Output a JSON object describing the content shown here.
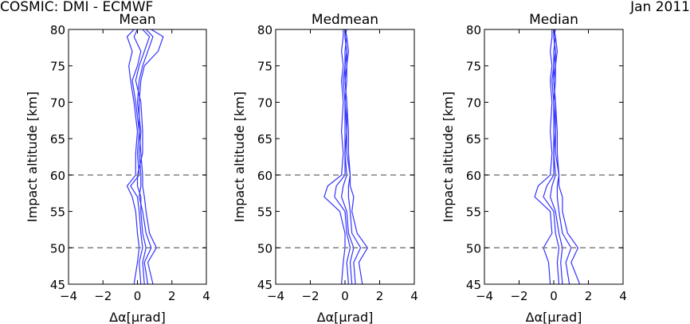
{
  "figure": {
    "title_left": "COSMIC: DMI - ECMWF",
    "title_right": "Jan 2011"
  },
  "colors": {
    "line": "#3333ff",
    "reference": "#808080",
    "axes": "#000000",
    "background": "#ffffff"
  },
  "chart_data": [
    {
      "type": "line",
      "title": "Mean",
      "xlabel": "Δα[μrad]",
      "ylabel": "Impact altitude [km]",
      "xlim": [
        -4,
        4
      ],
      "ylim": [
        45,
        80
      ],
      "xticks": [
        -4,
        -2,
        0,
        2,
        4
      ],
      "xtick_labels": [
        "−4",
        "−2",
        "0",
        "2",
        "4"
      ],
      "yticks": [
        45,
        50,
        55,
        60,
        65,
        70,
        75,
        80
      ],
      "ytick_labels": [
        "45",
        "50",
        "55",
        "60",
        "65",
        "70",
        "75",
        "80"
      ],
      "reference_lines": [
        60,
        50
      ],
      "series": [
        {
          "y": [
            45,
            48,
            50,
            52,
            55,
            57,
            58.5,
            60,
            63,
            66,
            70,
            73,
            75,
            77,
            79,
            80
          ],
          "x": [
            0.2,
            0.1,
            0.3,
            0.2,
            0.1,
            0.0,
            -0.4,
            0.1,
            0.0,
            0.1,
            -0.1,
            -0.3,
            0.0,
            0.2,
            -0.2,
            0.0
          ]
        },
        {
          "y": [
            45,
            48,
            50,
            52,
            55,
            57,
            58.5,
            60,
            63,
            66,
            70,
            73,
            75,
            77,
            79,
            80
          ],
          "x": [
            0.6,
            0.4,
            0.8,
            0.5,
            0.3,
            0.1,
            0.2,
            0.2,
            0.1,
            0.2,
            0.0,
            0.1,
            0.3,
            0.6,
            0.9,
            0.5
          ]
        },
        {
          "y": [
            45,
            48,
            50,
            52,
            55,
            57,
            58.5,
            60,
            63,
            66,
            70,
            73,
            75,
            77,
            79,
            80
          ],
          "x": [
            0.9,
            0.6,
            1.1,
            0.7,
            0.5,
            0.4,
            0.3,
            0.3,
            0.2,
            0.1,
            0.1,
            0.2,
            0.4,
            1.2,
            1.5,
            0.8
          ]
        },
        {
          "y": [
            45,
            48,
            50,
            52,
            55,
            57,
            58.5,
            60,
            63,
            66,
            70,
            73,
            75,
            77,
            79,
            80
          ],
          "x": [
            -0.2,
            0.0,
            0.1,
            0.0,
            -0.1,
            -0.3,
            -0.6,
            -0.1,
            -0.1,
            0.0,
            -0.2,
            -0.4,
            -0.5,
            -0.3,
            -0.6,
            -0.2
          ]
        },
        {
          "y": [
            45,
            48,
            50,
            52,
            55,
            57,
            58.5,
            60,
            63,
            66,
            70,
            73,
            75,
            77,
            79,
            80
          ],
          "x": [
            0.4,
            0.3,
            0.5,
            0.3,
            0.2,
            0.2,
            0.0,
            0.0,
            0.3,
            0.3,
            0.2,
            -0.1,
            0.1,
            0.4,
            0.7,
            0.3
          ]
        }
      ]
    },
    {
      "type": "line",
      "title": "Medmean",
      "xlabel": "Δα[μrad]",
      "ylabel": "Impact altitude [km]",
      "xlim": [
        -4,
        4
      ],
      "ylim": [
        45,
        80
      ],
      "xticks": [
        -4,
        -2,
        0,
        2,
        4
      ],
      "xtick_labels": [
        "−4",
        "−2",
        "0",
        "2",
        "4"
      ],
      "yticks": [
        45,
        50,
        55,
        60,
        65,
        70,
        75,
        80
      ],
      "ytick_labels": [
        "45",
        "50",
        "55",
        "60",
        "65",
        "70",
        "75",
        "80"
      ],
      "reference_lines": [
        60,
        50
      ],
      "series": [
        {
          "y": [
            45,
            48,
            50,
            52,
            55,
            57,
            58.5,
            60,
            63,
            66,
            70,
            73,
            75,
            77,
            79,
            80
          ],
          "x": [
            0.2,
            0.1,
            0.3,
            0.1,
            0.0,
            -0.6,
            -0.5,
            0.0,
            0.0,
            0.0,
            0.0,
            -0.1,
            0.0,
            0.1,
            0.0,
            0.0
          ]
        },
        {
          "y": [
            45,
            48,
            50,
            52,
            55,
            57,
            58.5,
            60,
            63,
            66,
            70,
            73,
            75,
            77,
            79,
            80
          ],
          "x": [
            0.6,
            0.5,
            0.9,
            0.4,
            0.3,
            0.2,
            0.2,
            0.3,
            0.1,
            0.1,
            0.0,
            0.1,
            0.1,
            0.1,
            0.0,
            0.1
          ]
        },
        {
          "y": [
            45,
            48,
            50,
            52,
            55,
            57,
            58.5,
            60,
            63,
            66,
            70,
            73,
            75,
            77,
            79,
            80
          ],
          "x": [
            1.0,
            0.8,
            1.3,
            0.7,
            0.4,
            0.5,
            0.3,
            0.3,
            0.2,
            0.2,
            0.1,
            0.0,
            0.1,
            0.2,
            0.1,
            0.0
          ]
        },
        {
          "y": [
            45,
            48,
            50,
            52,
            55,
            57,
            58.5,
            60,
            63,
            66,
            70,
            73,
            75,
            77,
            79,
            80
          ],
          "x": [
            -0.2,
            -0.1,
            0.0,
            0.0,
            -0.3,
            -1.2,
            -1.0,
            -0.2,
            -0.1,
            -0.2,
            -0.1,
            -0.2,
            -0.1,
            -0.2,
            -0.1,
            -0.1
          ]
        },
        {
          "y": [
            45,
            48,
            50,
            52,
            55,
            57,
            58.5,
            60,
            63,
            66,
            70,
            73,
            75,
            77,
            79,
            80
          ],
          "x": [
            0.4,
            0.3,
            0.5,
            0.2,
            0.1,
            -0.2,
            -0.1,
            0.1,
            0.0,
            0.1,
            0.1,
            0.0,
            0.0,
            0.0,
            0.1,
            0.0
          ]
        }
      ]
    },
    {
      "type": "line",
      "title": "Median",
      "xlabel": "Δα[μrad]",
      "ylabel": "Impact altitude [km]",
      "xlim": [
        -4,
        4
      ],
      "ylim": [
        45,
        80
      ],
      "xticks": [
        -4,
        -2,
        0,
        2,
        4
      ],
      "xtick_labels": [
        "−4",
        "−2",
        "0",
        "2",
        "4"
      ],
      "yticks": [
        45,
        50,
        55,
        60,
        65,
        70,
        75,
        80
      ],
      "ytick_labels": [
        "45",
        "50",
        "55",
        "60",
        "65",
        "70",
        "75",
        "80"
      ],
      "reference_lines": [
        60,
        50
      ],
      "series": [
        {
          "y": [
            45,
            48,
            50,
            52,
            55,
            57,
            58.5,
            60,
            63,
            66,
            70,
            73,
            75,
            77,
            79,
            80
          ],
          "x": [
            0.3,
            0.2,
            0.3,
            0.1,
            0.0,
            -0.6,
            -0.4,
            0.0,
            0.0,
            0.0,
            0.0,
            -0.1,
            0.0,
            0.1,
            0.0,
            0.0
          ]
        },
        {
          "y": [
            45,
            48,
            50,
            52,
            55,
            57,
            58.5,
            60,
            63,
            66,
            70,
            73,
            75,
            77,
            79,
            80
          ],
          "x": [
            0.9,
            0.7,
            1.0,
            0.5,
            0.3,
            0.2,
            0.2,
            0.3,
            0.1,
            0.1,
            0.0,
            0.1,
            0.1,
            0.1,
            0.0,
            0.1
          ]
        },
        {
          "y": [
            45,
            48,
            50,
            52,
            55,
            57,
            58.5,
            60,
            63,
            66,
            70,
            73,
            75,
            77,
            79,
            80
          ],
          "x": [
            1.5,
            1.0,
            1.4,
            0.8,
            0.5,
            0.5,
            0.3,
            0.3,
            0.2,
            0.2,
            0.1,
            0.0,
            0.1,
            0.2,
            0.1,
            0.0
          ]
        },
        {
          "y": [
            45,
            48,
            50,
            52,
            55,
            57,
            58.5,
            60,
            63,
            66,
            70,
            73,
            75,
            77,
            79,
            80
          ],
          "x": [
            -0.2,
            -0.3,
            -0.6,
            -0.1,
            -0.2,
            -1.1,
            -0.9,
            -0.2,
            -0.1,
            -0.2,
            -0.1,
            -0.2,
            -0.1,
            -0.2,
            -0.1,
            -0.1
          ]
        },
        {
          "y": [
            45,
            48,
            50,
            52,
            55,
            57,
            58.5,
            60,
            63,
            66,
            70,
            73,
            75,
            77,
            79,
            80
          ],
          "x": [
            0.5,
            0.4,
            0.5,
            0.3,
            0.1,
            -0.2,
            -0.1,
            0.1,
            0.0,
            0.1,
            0.1,
            0.0,
            0.0,
            0.0,
            0.1,
            0.0
          ]
        }
      ]
    }
  ]
}
